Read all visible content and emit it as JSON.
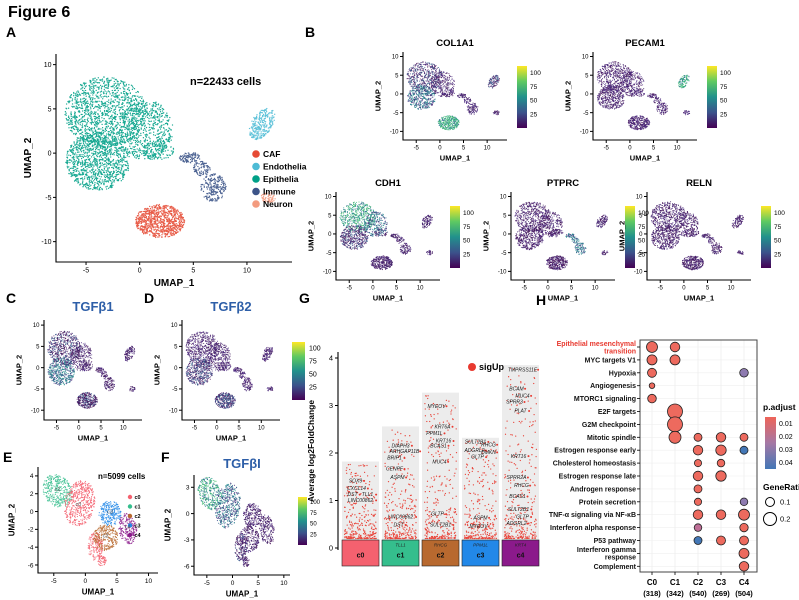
{
  "figure_title": "Figure 6",
  "colors": {
    "celltype": {
      "CAF": "#E64B35",
      "Endothelia": "#4DBBD5",
      "Epithelia": "#00A087",
      "Immune": "#3C5488",
      "Neuron": "#F39B7F"
    },
    "subcluster": {
      "c0": "#F4616F",
      "c1": "#35BE8D",
      "c2": "#B8692F",
      "c3": "#2288E8",
      "c4": "#8B1A8B"
    },
    "feature_title_blue": "#2E5FA8",
    "sig_red": "#E8392F",
    "viridis_sets": {
      "low": [
        "#440c54",
        "#46217e",
        "#3d1c5e",
        "#482878"
      ],
      "lowm": [
        "#440c54",
        "#482878",
        "#3e4a89",
        "#440c54",
        "#31688e"
      ],
      "midl": [
        "#31688e",
        "#26828e",
        "#482878",
        "#21918c",
        "#3e4a89"
      ],
      "hi2": [
        "#35b779",
        "#44bf70",
        "#21918c",
        "#31688e"
      ]
    }
  },
  "panelA": {
    "label": "A",
    "note": "n=22433 cells",
    "xlabel": "UMAP_1",
    "ylabel": "UMAP_2",
    "xticks": [
      -5,
      0,
      5,
      10
    ],
    "yticks": [
      -10,
      -5,
      0,
      5,
      10
    ],
    "legend": [
      "CAF",
      "Endothelia",
      "Epithelia",
      "Immune",
      "Neuron"
    ],
    "blob_types": [
      "Epithelia",
      "Epithelia",
      "Epithelia",
      "Epithelia",
      "CAF",
      "Immune",
      "Immune",
      "Immune",
      "Endothelia",
      "Neuron"
    ]
  },
  "panelB": {
    "label": "B",
    "xlabel": "UMAP_1",
    "ylabel": "UMAP_2",
    "xticks": [
      -5,
      0,
      5,
      10
    ],
    "yticks": [
      -10,
      -5,
      0,
      5,
      10
    ],
    "cbar_ticks": [
      100,
      75,
      50,
      25
    ],
    "plots": [
      {
        "title": "COL1A1",
        "expression": [
          "lowm",
          "midl",
          "low",
          "low",
          "hi2",
          "low",
          "low",
          "low",
          "lowm",
          "low"
        ]
      },
      {
        "title": "PECAM1",
        "expression": [
          "low",
          "low",
          "low",
          "low",
          "low",
          "low",
          "low",
          "low",
          "hi2",
          "low"
        ]
      },
      {
        "title": "CDH1",
        "expression": [
          "hi2",
          "lowm",
          "midl",
          "lowm",
          "low",
          "low",
          "low",
          "low",
          "low",
          "low"
        ]
      },
      {
        "title": "PTPRC",
        "expression": [
          "low",
          "low",
          "low",
          "low",
          "low",
          "midl",
          "midl",
          "midl",
          "low",
          "low"
        ]
      },
      {
        "title": "RELN",
        "expression": [
          "low",
          "low",
          "low",
          "low",
          "low",
          "low",
          "low",
          "low",
          "low",
          "low"
        ]
      }
    ]
  },
  "panelC": {
    "label": "C",
    "title": "TGFβ1",
    "xlabel": "UMAP_1",
    "ylabel": "UMAP_2",
    "xticks": [
      -5,
      0,
      5,
      10
    ],
    "yticks": [
      -10,
      -5,
      0,
      5,
      10
    ],
    "expression": [
      "lowm",
      "midl",
      "low",
      "low",
      "lowm",
      "low",
      "low",
      "low",
      "low",
      "low"
    ]
  },
  "panelD": {
    "label": "D",
    "title": "TGFβ2",
    "xlabel": "UMAP_1",
    "ylabel": "UMAP_2",
    "xticks": [
      -5,
      0,
      5,
      10
    ],
    "yticks": [
      -10,
      -5,
      0,
      5,
      10
    ],
    "expression": [
      "low",
      "lowm",
      "low",
      "low",
      "lowm",
      "low",
      "low",
      "low",
      "low",
      "low"
    ]
  },
  "shared_colorbar_ticks": [
    100,
    75,
    50,
    25
  ],
  "panelE": {
    "label": "E",
    "note": "n=5099 cells",
    "xlabel": "UMAP_1",
    "ylabel": "UMAP_2",
    "xticks": [
      -5,
      0,
      5,
      10
    ],
    "yticks": [
      4,
      2,
      0,
      -2,
      -4,
      -6
    ],
    "legend": [
      "c0",
      "c1",
      "c2",
      "c3",
      "c4"
    ],
    "blob_types": [
      "c1",
      "c0",
      "c0",
      "c0",
      "c3",
      "c2",
      "c4"
    ],
    "centroids": [
      [
        "c0",
        -1.1,
        0.6
      ],
      [
        "c1",
        -4.4,
        2.3
      ],
      [
        "c2",
        3.2,
        -2.9
      ],
      [
        "c3",
        3.9,
        -0.2
      ],
      [
        "c4",
        6.7,
        -1.9
      ]
    ]
  },
  "panelF": {
    "label": "F",
    "title": "TGFβI",
    "xlabel": "UMAP_1",
    "ylabel": "UMAP_2",
    "xticks": [
      -5,
      0,
      5,
      10
    ],
    "yticks": [
      3,
      0,
      -3,
      -6
    ],
    "cbar_ticks": [
      100,
      75,
      50,
      25
    ],
    "expression": [
      "hi2",
      "midl",
      "lowm",
      "low",
      "low",
      "low",
      "low"
    ]
  },
  "panelG": {
    "label": "G",
    "ylabel": "Average log2FoldChange",
    "yticks": [
      0,
      1,
      2,
      3,
      4
    ],
    "legend": "sigUp",
    "point_color": "#E8392F",
    "clusters": [
      {
        "name": "c0",
        "bar_top": 1.82,
        "genes": [
          [
            "SOX9",
            1.38,
            -5
          ],
          [
            "CXCL14",
            1.22,
            -4
          ],
          [
            "DST",
            1.09,
            -8
          ],
          [
            "TLL1",
            1.09,
            7
          ],
          [
            "LINC00862",
            0.97,
            0
          ]
        ]
      },
      {
        "name": "c1",
        "bar_top": 2.56,
        "box_gene": "TLL1",
        "genes": [
          [
            "DIAPH3",
            2.12,
            0
          ],
          [
            "ARHGAP11B",
            2.0,
            4
          ],
          [
            "BRIP1",
            1.86,
            -6
          ],
          [
            "CENPF",
            1.63,
            -6
          ],
          [
            "ASPM",
            1.45,
            -3
          ],
          [
            "LINC00862",
            0.62,
            0
          ],
          [
            "DST",
            0.45,
            -2
          ]
        ]
      },
      {
        "name": "c2",
        "bar_top": 3.27,
        "box_gene": "RHCG",
        "genes": [
          [
            "MYEOV",
            2.95,
            -4
          ],
          [
            "KRT6A",
            2.52,
            2
          ],
          [
            "PPM1L",
            2.38,
            -6
          ],
          [
            "KRT16",
            2.22,
            3
          ],
          [
            "BCAS1",
            2.12,
            -2
          ],
          [
            "MUC4",
            1.78,
            -1
          ],
          [
            "GLTP",
            0.68,
            -3
          ],
          [
            "SULT2B1",
            0.45,
            0
          ]
        ]
      },
      {
        "name": "c3",
        "bar_top": 2.32,
        "box_gene": "PPM1L",
        "genes": [
          [
            "SULT2B1",
            2.2,
            -5
          ],
          [
            "RHCG",
            2.14,
            8
          ],
          [
            "ADGRL2",
            2.02,
            -6
          ],
          [
            "DMKN",
            1.98,
            8
          ],
          [
            "GLTP",
            1.88,
            -3
          ],
          [
            "ASPM",
            0.6,
            0
          ],
          [
            "MYEOV",
            0.42,
            -2
          ]
        ]
      },
      {
        "name": "c4",
        "bar_top": 3.85,
        "box_gene": "KRT4",
        "genes": [
          [
            "TMPRSS11E",
            3.72,
            2
          ],
          [
            "BCAM",
            3.32,
            -4
          ],
          [
            "MUC4",
            3.17,
            2
          ],
          [
            "SPRR3",
            3.04,
            -6
          ],
          [
            "PLAT",
            2.85,
            0
          ],
          [
            "KRT16",
            1.9,
            -2
          ],
          [
            "SPRR2A",
            1.45,
            -4
          ],
          [
            "RHCG",
            1.28,
            1
          ],
          [
            "BCAS1",
            1.05,
            -3
          ],
          [
            "SULT2B1",
            0.78,
            -2
          ],
          [
            "GLTP",
            0.62,
            2
          ],
          [
            "ADGRL2",
            0.48,
            -4
          ]
        ]
      }
    ]
  },
  "panelH": {
    "label": "H",
    "highlight_color": "#E8392F",
    "dot_colors": {
      "red": "#ED6A5E",
      "blue": "#4377B6",
      "purple": "#8E7BB0",
      "mauve": "#BE6F97"
    },
    "cols": [
      [
        "C0",
        "(318)"
      ],
      [
        "C1",
        "(342)"
      ],
      [
        "C2",
        "(540)"
      ],
      [
        "C3",
        "(269)"
      ],
      [
        "C4",
        "(504)"
      ]
    ],
    "rows": [
      {
        "name": "Epithelial mesenchymal\ntransition",
        "highlight": true,
        "dots": [
          [
            0,
            5.5,
            "red"
          ],
          [
            1,
            4.8,
            "red"
          ]
        ]
      },
      {
        "name": "MYC targets V1",
        "dots": [
          [
            0,
            5.0,
            "red"
          ],
          [
            1,
            5.0,
            "red"
          ]
        ]
      },
      {
        "name": "Hypoxia",
        "dots": [
          [
            0,
            4.5,
            "red"
          ],
          [
            4,
            4.3,
            "purple"
          ]
        ]
      },
      {
        "name": "Angiogenesis",
        "dots": [
          [
            0,
            2.8,
            "red"
          ]
        ]
      },
      {
        "name": "MTORC1 signaling",
        "dots": [
          [
            0,
            4.3,
            "red"
          ]
        ]
      },
      {
        "name": "E2F targets",
        "dots": [
          [
            1,
            7.5,
            "red"
          ]
        ]
      },
      {
        "name": "G2M checkpoint",
        "dots": [
          [
            1,
            7.5,
            "red"
          ]
        ]
      },
      {
        "name": "Mitotic spindle",
        "dots": [
          [
            1,
            6.0,
            "red"
          ],
          [
            2,
            4.0,
            "red"
          ],
          [
            3,
            4.8,
            "red"
          ],
          [
            4,
            4.0,
            "red"
          ]
        ]
      },
      {
        "name": "Estrogen response early",
        "dots": [
          [
            2,
            4.8,
            "red"
          ],
          [
            3,
            5.2,
            "red"
          ],
          [
            4,
            4.0,
            "blue"
          ]
        ]
      },
      {
        "name": "Cholesterol homeostasis",
        "dots": [
          [
            2,
            3.6,
            "red"
          ],
          [
            3,
            3.8,
            "red"
          ]
        ]
      },
      {
        "name": "Estrogen response late",
        "dots": [
          [
            2,
            4.8,
            "red"
          ],
          [
            3,
            5.2,
            "red"
          ]
        ]
      },
      {
        "name": "Androgen response",
        "dots": [
          [
            2,
            4.0,
            "red"
          ]
        ]
      },
      {
        "name": "Protein secretion",
        "dots": [
          [
            2,
            3.6,
            "red"
          ],
          [
            4,
            3.8,
            "purple"
          ]
        ]
      },
      {
        "name": "TNF-α signaling via NF-κB",
        "dots": [
          [
            2,
            4.8,
            "red"
          ],
          [
            3,
            4.8,
            "red"
          ],
          [
            4,
            5.5,
            "red"
          ]
        ]
      },
      {
        "name": "Interferon alpha response",
        "dots": [
          [
            2,
            3.8,
            "mauve"
          ],
          [
            4,
            4.2,
            "red"
          ]
        ]
      },
      {
        "name": "P53 pathway",
        "dots": [
          [
            2,
            4.0,
            "blue"
          ],
          [
            3,
            4.5,
            "red"
          ],
          [
            4,
            4.5,
            "red"
          ]
        ]
      },
      {
        "name": "Interferon gamma\nresponse",
        "dots": [
          [
            4,
            5.0,
            "red"
          ]
        ]
      },
      {
        "name": "Complement",
        "dots": [
          [
            4,
            4.8,
            "red"
          ]
        ]
      }
    ],
    "p_legend": {
      "title": "p.adjust",
      "ticks": [
        "0.01",
        "0.02",
        "0.03",
        "0.04"
      ]
    },
    "ratio_legend": {
      "title": "GeneRatio",
      "items": [
        [
          "0.1",
          4.5
        ],
        [
          "0.2",
          6.5
        ]
      ]
    }
  },
  "chart_data": [
    {
      "panel": "A",
      "type": "scatter",
      "annotation": "n=22433 cells",
      "clusters": [
        "CAF",
        "Endothelia",
        "Epithelia",
        "Immune",
        "Neuron"
      ],
      "xlabel": "UMAP_1",
      "ylabel": "UMAP_2",
      "xlim": [
        -7,
        13
      ],
      "ylim": [
        -10,
        10
      ]
    },
    {
      "panel": "B",
      "type": "scatter",
      "feature_plots": [
        "COL1A1",
        "PECAM1",
        "CDH1",
        "PTPRC",
        "RELN"
      ],
      "colorbar_ticks": [
        25,
        50,
        75,
        100
      ]
    },
    {
      "panel": "C",
      "type": "scatter",
      "title": "TGFβ1"
    },
    {
      "panel": "D",
      "type": "scatter",
      "title": "TGFβ2"
    },
    {
      "panel": "E",
      "type": "scatter",
      "annotation": "n=5099 cells",
      "clusters": [
        "c0",
        "c1",
        "c2",
        "c3",
        "c4"
      ]
    },
    {
      "panel": "F",
      "type": "scatter",
      "title": "TGFβI",
      "colorbar_ticks": [
        25,
        50,
        75,
        100
      ]
    },
    {
      "panel": "G",
      "type": "bar",
      "categories": [
        "c0",
        "c1",
        "c2",
        "c3",
        "c4"
      ],
      "values": [
        1.82,
        2.56,
        3.27,
        2.32,
        3.85
      ],
      "ylabel": "Average log2FoldChange",
      "ylim": [
        0,
        4
      ],
      "legend": [
        "sigUp"
      ]
    },
    {
      "panel": "H",
      "type": "heatmap",
      "columns": [
        "C0 (318)",
        "C1 (342)",
        "C2 (540)",
        "C3 (269)",
        "C4 (504)"
      ],
      "legend": {
        "p.adjust": [
          0.01,
          0.02,
          0.03,
          0.04
        ],
        "GeneRatio": [
          0.1,
          0.2
        ]
      }
    }
  ]
}
